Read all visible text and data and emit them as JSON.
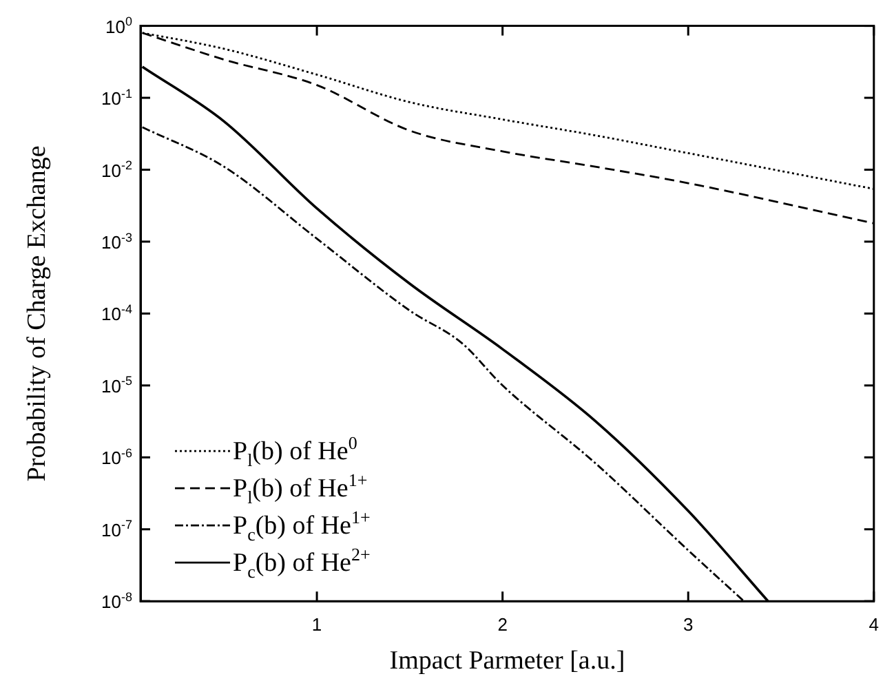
{
  "chart_data": {
    "type": "line",
    "xlabel": "Impact Parmeter [a.u.]",
    "ylabel": "Probability of Charge Exchange",
    "log": "y",
    "legend": "bottom left",
    "marker": "none",
    "xlim": [
      0.05,
      4
    ],
    "xticks": [
      1,
      2,
      3,
      4
    ],
    "ylim": [
      1e-08,
      1
    ],
    "yticks": [
      {
        "value": 1,
        "label": "10$^{0}$"
      },
      {
        "value": 0.1,
        "label": "10$^{-1}$"
      },
      {
        "value": 0.01,
        "label": "10$^{-2}$"
      },
      {
        "value": 0.001,
        "label": "10$^{-3}$"
      },
      {
        "value": 0.0001,
        "label": "10$^{-4}$"
      },
      {
        "value": 1e-05,
        "label": "10$^{-5}$"
      },
      {
        "value": 1e-06,
        "label": "10$^{-6}$"
      },
      {
        "value": 1e-07,
        "label": "10$^{-7}$"
      },
      {
        "value": 1e-08,
        "label": "10$^{-8}$"
      }
    ],
    "series": [
      {
        "name": "P$_{l}$(b) of He$^{0}$",
        "color": "#000000",
        "line_style": "dotted",
        "x": [
          0.06,
          0.5,
          1,
          1.5,
          2,
          2.5,
          3,
          4
        ],
        "values": [
          0.8,
          0.48,
          0.21,
          0.087,
          0.05,
          0.03,
          0.017,
          0.0054
        ]
      },
      {
        "name": "P$_{l}$(b) of He$^{1+}$",
        "color": "#000000",
        "line_style": "dashed",
        "x": [
          0.06,
          0.5,
          1,
          1.5,
          2,
          2.5,
          3,
          4
        ],
        "values": [
          0.8,
          0.34,
          0.15,
          0.035,
          0.018,
          0.011,
          0.0065,
          0.0018
        ]
      },
      {
        "name": "P$_{c}$(b) of He$^{1+}$",
        "color": "#000000",
        "line_style": "dashdot",
        "x": [
          0.06,
          0.5,
          1,
          1.5,
          1.78,
          2,
          2.5,
          3,
          3.3
        ],
        "values": [
          0.039,
          0.011,
          0.0011,
          0.00011,
          3.9e-05,
          1e-05,
          8.3e-07,
          5.1e-08,
          1e-08
        ]
      },
      {
        "name": "P$_{c}$(b) of He$^{2+}$",
        "color": "#000000",
        "line_style": "solid",
        "x": [
          0.06,
          0.5,
          1,
          1.5,
          2,
          2.5,
          3,
          3.43
        ],
        "values": [
          0.27,
          0.047,
          0.0029,
          0.00026,
          3.2e-05,
          3.2e-06,
          1.8e-07,
          1e-08
        ]
      }
    ]
  }
}
